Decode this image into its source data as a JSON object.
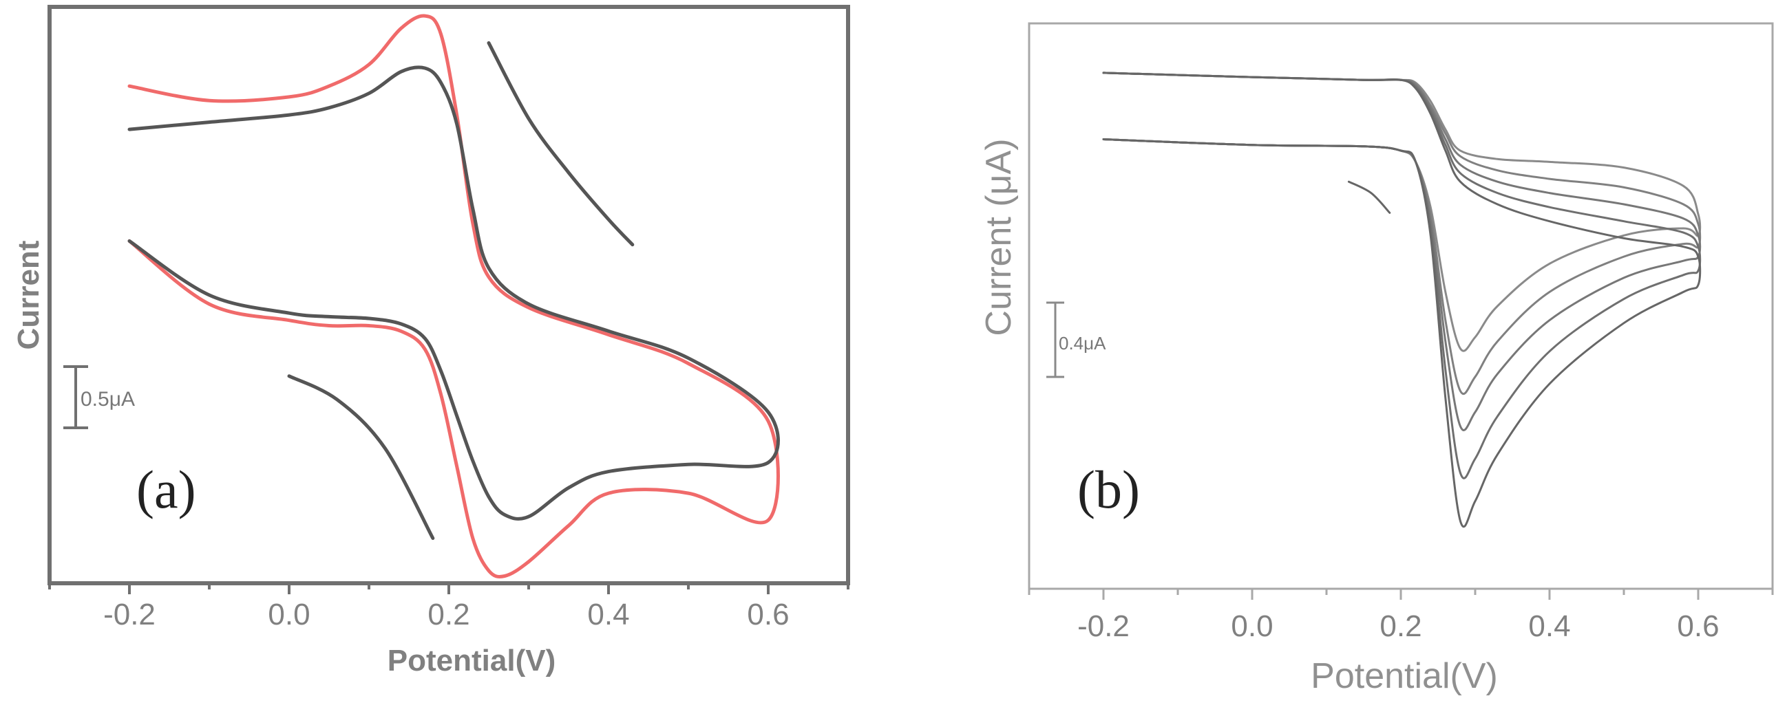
{
  "chart_data": [
    {
      "panel": "a",
      "type": "line",
      "title": "",
      "panel_label": "(a)",
      "xlabel": "Potential(V)",
      "ylabel": "Current",
      "xlim": [
        -0.3,
        0.7
      ],
      "ylim": [
        -1.1,
        2.1
      ],
      "xticks": [
        -0.2,
        0.0,
        0.2,
        0.4,
        0.6
      ],
      "xtick_labels": [
        "-0.2",
        "0.0",
        "0.2",
        "0.4",
        "0.6"
      ],
      "grid": false,
      "scale_bar": {
        "label": "0.5μA",
        "value": 0.5
      },
      "series": [
        {
          "name": "curve-red",
          "color": "#f06a6a",
          "x": [
            -0.2,
            -0.1,
            0.0,
            0.05,
            0.1,
            0.14,
            0.17,
            0.19,
            0.21,
            0.23,
            0.25,
            0.3,
            0.4,
            0.5,
            0.6,
            0.6,
            0.5,
            0.4,
            0.35,
            0.3,
            0.27,
            0.25,
            0.23,
            0.21,
            0.19,
            0.17,
            0.14,
            0.1,
            0.05,
            0.0,
            -0.1,
            -0.2
          ],
          "y": [
            1.66,
            1.58,
            1.6,
            1.66,
            1.78,
            1.98,
            2.05,
            1.95,
            1.5,
            0.9,
            0.6,
            0.43,
            0.28,
            0.12,
            -0.2,
            -0.75,
            -0.6,
            -0.6,
            -0.78,
            -0.98,
            -1.06,
            -1.03,
            -0.85,
            -0.45,
            -0.05,
            0.2,
            0.3,
            0.33,
            0.33,
            0.36,
            0.45,
            0.8
          ]
        },
        {
          "name": "curve-black",
          "color": "#555555",
          "x": [
            -0.2,
            -0.1,
            0.0,
            0.05,
            0.1,
            0.14,
            0.17,
            0.19,
            0.21,
            0.23,
            0.25,
            0.3,
            0.4,
            0.5,
            0.6,
            0.6,
            0.5,
            0.4,
            0.35,
            0.3,
            0.27,
            0.25,
            0.23,
            0.21,
            0.19,
            0.17,
            0.14,
            0.1,
            0.05,
            0.0,
            -0.1,
            -0.2
          ],
          "y": [
            1.42,
            1.46,
            1.5,
            1.54,
            1.62,
            1.74,
            1.76,
            1.68,
            1.45,
            0.98,
            0.65,
            0.45,
            0.3,
            0.15,
            -0.15,
            -0.43,
            -0.44,
            -0.48,
            -0.57,
            -0.73,
            -0.72,
            -0.62,
            -0.42,
            -0.17,
            0.08,
            0.26,
            0.34,
            0.37,
            0.38,
            0.4,
            0.5,
            0.8
          ]
        },
        {
          "name": "curve-fragment-upper",
          "color": "#555555",
          "x": [
            0.25,
            0.3,
            0.35,
            0.4,
            0.43
          ],
          "y": [
            1.9,
            1.48,
            1.18,
            0.92,
            0.78
          ]
        },
        {
          "name": "curve-fragment-lower",
          "color": "#555555",
          "x": [
            0.0,
            0.06,
            0.12,
            0.18
          ],
          "y": [
            0.05,
            -0.08,
            -0.35,
            -0.85
          ]
        }
      ]
    },
    {
      "panel": "b",
      "type": "line",
      "title": "",
      "panel_label": "(b)",
      "xlabel": "Potential(V)",
      "ylabel": "Current (μA)",
      "xlim": [
        -0.3,
        0.7
      ],
      "ylim": [
        -2.3,
        1.7
      ],
      "xticks": [
        -0.2,
        0.0,
        0.2,
        0.4,
        0.6
      ],
      "xtick_labels": [
        "-0.2",
        "0.0",
        "0.2",
        "0.4",
        "0.6"
      ],
      "grid": false,
      "scale_bar": {
        "label": "0.4μA",
        "value": 0.4
      },
      "series": [
        {
          "name": "scan-1",
          "color": "#8a8a8a",
          "x": [
            -0.2,
            0.0,
            0.15,
            0.2,
            0.22,
            0.24,
            0.26,
            0.28,
            0.33,
            0.4,
            0.5,
            0.58,
            0.6,
            0.6,
            0.58,
            0.5,
            0.4,
            0.33,
            0.3,
            0.28,
            0.26,
            0.24,
            0.22,
            0.2,
            0.15,
            0.0,
            -0.2
          ],
          "y": [
            1.35,
            1.32,
            1.3,
            1.3,
            1.28,
            1.15,
            0.95,
            0.8,
            0.74,
            0.72,
            0.68,
            0.55,
            0.35,
            0.2,
            0.25,
            0.2,
            0.0,
            -0.3,
            -0.52,
            -0.6,
            -0.2,
            0.4,
            0.72,
            0.8,
            0.83,
            0.84,
            0.88
          ]
        },
        {
          "name": "scan-2",
          "color": "#808080",
          "x": [
            -0.2,
            0.0,
            0.15,
            0.2,
            0.22,
            0.24,
            0.26,
            0.28,
            0.33,
            0.4,
            0.5,
            0.58,
            0.6,
            0.6,
            0.58,
            0.5,
            0.4,
            0.33,
            0.3,
            0.28,
            0.26,
            0.24,
            0.22,
            0.2,
            0.15,
            0.0,
            -0.2
          ],
          "y": [
            1.35,
            1.32,
            1.3,
            1.3,
            1.27,
            1.12,
            0.92,
            0.76,
            0.66,
            0.6,
            0.54,
            0.42,
            0.28,
            0.12,
            0.14,
            0.05,
            -0.2,
            -0.55,
            -0.8,
            -0.9,
            -0.4,
            0.35,
            0.72,
            0.8,
            0.83,
            0.84,
            0.88
          ]
        },
        {
          "name": "scan-3",
          "color": "#777777",
          "x": [
            -0.2,
            0.0,
            0.15,
            0.2,
            0.22,
            0.24,
            0.26,
            0.28,
            0.33,
            0.4,
            0.5,
            0.58,
            0.6,
            0.6,
            0.58,
            0.5,
            0.4,
            0.33,
            0.3,
            0.28,
            0.26,
            0.24,
            0.22,
            0.2,
            0.15,
            0.0,
            -0.2
          ],
          "y": [
            1.35,
            1.32,
            1.3,
            1.3,
            1.26,
            1.1,
            0.88,
            0.7,
            0.58,
            0.5,
            0.42,
            0.32,
            0.2,
            0.05,
            0.02,
            -0.1,
            -0.4,
            -0.78,
            -1.05,
            -1.15,
            -0.55,
            0.3,
            0.72,
            0.8,
            0.83,
            0.84,
            0.88
          ]
        },
        {
          "name": "scan-4",
          "color": "#6f6f6f",
          "x": [
            -0.2,
            0.0,
            0.15,
            0.2,
            0.22,
            0.24,
            0.26,
            0.28,
            0.33,
            0.4,
            0.5,
            0.58,
            0.6,
            0.6,
            0.58,
            0.5,
            0.4,
            0.33,
            0.3,
            0.28,
            0.26,
            0.24,
            0.22,
            0.2,
            0.15,
            0.0,
            -0.2
          ],
          "y": [
            1.35,
            1.32,
            1.3,
            1.3,
            1.25,
            1.08,
            0.84,
            0.64,
            0.5,
            0.4,
            0.3,
            0.22,
            0.12,
            -0.05,
            -0.08,
            -0.25,
            -0.62,
            -1.08,
            -1.38,
            -1.48,
            -0.75,
            0.25,
            0.72,
            0.8,
            0.83,
            0.84,
            0.88
          ]
        },
        {
          "name": "scan-5",
          "color": "#666666",
          "x": [
            -0.2,
            0.0,
            0.15,
            0.2,
            0.22,
            0.24,
            0.26,
            0.28,
            0.33,
            0.4,
            0.5,
            0.58,
            0.6,
            0.6,
            0.58,
            0.5,
            0.4,
            0.33,
            0.3,
            0.28,
            0.26,
            0.24,
            0.22,
            0.2,
            0.15,
            0.0,
            -0.2
          ],
          "y": [
            1.35,
            1.32,
            1.3,
            1.3,
            1.24,
            1.06,
            0.8,
            0.58,
            0.42,
            0.3,
            0.18,
            0.12,
            0.05,
            -0.15,
            -0.2,
            -0.42,
            -0.85,
            -1.35,
            -1.68,
            -1.82,
            -0.95,
            0.2,
            0.72,
            0.8,
            0.83,
            0.84,
            0.88
          ]
        },
        {
          "name": "scan-fragment",
          "color": "#666666",
          "x": [
            0.13,
            0.16,
            0.185
          ],
          "y": [
            0.58,
            0.5,
            0.36
          ]
        }
      ]
    }
  ]
}
